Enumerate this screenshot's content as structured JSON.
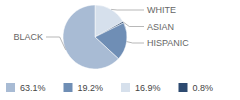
{
  "chart_data": {
    "type": "pie",
    "categories": [
      "BLACK",
      "HISPANIC",
      "WHITE",
      "ASIAN"
    ],
    "values": [
      63.1,
      19.2,
      16.9,
      0.8
    ],
    "value_labels": [
      "63.1%",
      "19.2%",
      "16.9%",
      "0.8%"
    ],
    "colors": [
      "#a8bbd4",
      "#6f8eb5",
      "#d6e0ec",
      "#2d4a70"
    ],
    "legend": "bottom"
  }
}
